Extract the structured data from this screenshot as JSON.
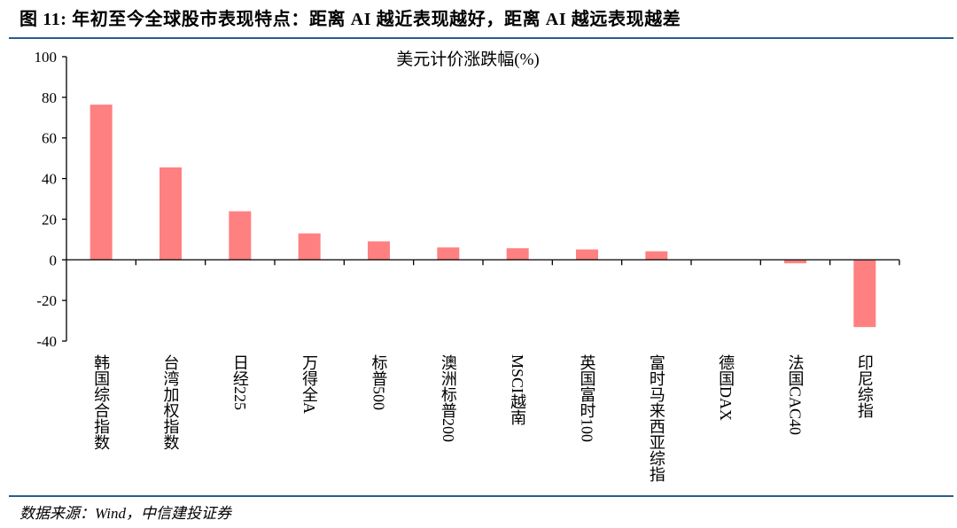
{
  "figure": {
    "title": "图 11: 年初至今全球股市表现特点：距离 AI 越近表现越好，距离 AI 越远表现越差",
    "source": "数据来源：Wind，中信建投证券"
  },
  "colors": {
    "rule": "#2a5d8c",
    "bar": "#ff8080",
    "axis": "#000000"
  },
  "chart_data": {
    "type": "bar",
    "title": "美元计价涨跌幅(%)",
    "categories": [
      "韩国综合指数",
      "台湾加权指数",
      "日经225",
      "万得全A",
      "标普500",
      "澳洲标普200",
      "MSCI越南",
      "英国富时100",
      "富时马来西亚综指",
      "德国DAX",
      "法国CAC40",
      "印尼综指"
    ],
    "values": [
      76.4,
      45.5,
      23.9,
      13.0,
      9.1,
      6.1,
      5.7,
      5.1,
      4.2,
      0.1,
      -1.7,
      -33.1
    ],
    "ylim": [
      -40,
      100
    ],
    "yticks": [
      -40,
      -20,
      0,
      20,
      40,
      60,
      80,
      100
    ],
    "grid": false,
    "legend": "none"
  }
}
